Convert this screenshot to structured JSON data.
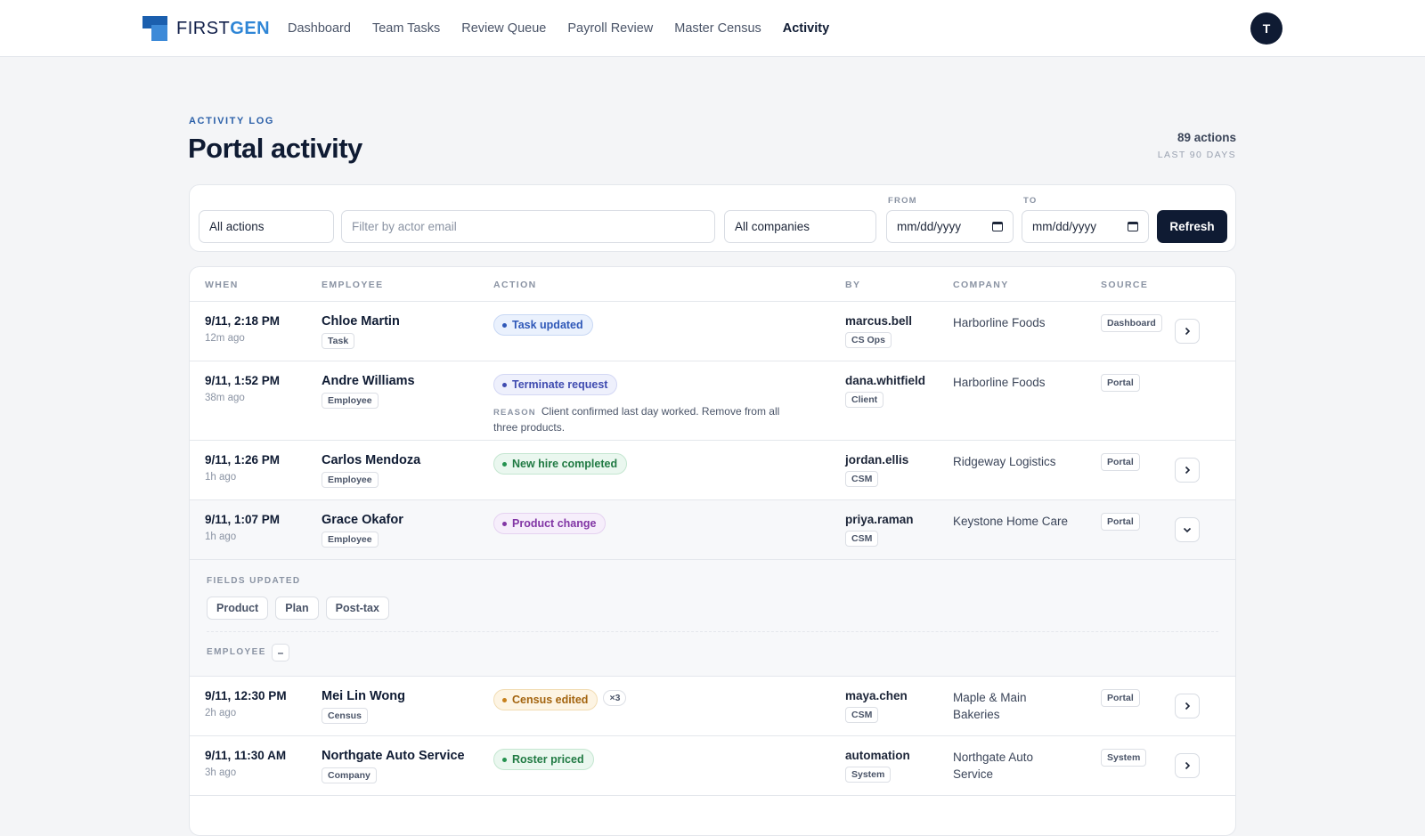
{
  "app": {
    "logo_first": "FIRST",
    "logo_gen": "GEN"
  },
  "nav": {
    "items": [
      "Dashboard",
      "Team Tasks",
      "Review Queue",
      "Payroll Review",
      "Master Census",
      "Activity"
    ],
    "active": "Activity"
  },
  "user": {
    "initial": "T"
  },
  "header": {
    "eyebrow": "ACTIVITY LOG",
    "title": "Portal activity",
    "count": "89 actions",
    "period": "LAST 90 DAYS"
  },
  "filters": {
    "action_select": "All actions",
    "actor_placeholder": "Filter by actor email",
    "company_select": "All companies",
    "from_label": "FROM",
    "from_value": "mm/dd/yyyy",
    "to_label": "TO",
    "to_value": "mm/dd/yyyy",
    "refresh": "Refresh"
  },
  "table": {
    "columns": [
      "WHEN",
      "EMPLOYEE",
      "ACTION",
      "BY",
      "COMPANY",
      "SOURCE"
    ],
    "rows": [
      {
        "when": "9/11, 2:18 PM",
        "ago": "12m ago",
        "employee": "Chloe Martin",
        "type": "Task",
        "action": "Task updated",
        "color": "#2f58b8",
        "by": "marcus.bell",
        "role": "CS Ops",
        "company": "Harborline Foods",
        "source": "Dashboard"
      },
      {
        "when": "9/11, 1:52 PM",
        "ago": "38m ago",
        "employee": "Andre Williams",
        "type": "Employee",
        "action": "Terminate request",
        "color": "#3f4bb0",
        "reason_label": "REASON",
        "reason": "Client confirmed last day worked. Remove from all three products.",
        "by": "dana.whitfield",
        "role": "Client",
        "company": "Harborline Foods",
        "source": "Portal"
      },
      {
        "when": "9/11, 1:26 PM",
        "ago": "1h ago",
        "employee": "Carlos Mendoza",
        "type": "Employee",
        "action": "New hire completed",
        "color": "#207a43",
        "by": "jordan.ellis",
        "role": "CSM",
        "company": "Ridgeway Logistics",
        "source": "Portal"
      },
      {
        "when": "9/11, 1:07 PM",
        "ago": "1h ago",
        "employee": "Grace Okafor",
        "type": "Employee",
        "action": "Product change",
        "color": "#8236a5",
        "by": "priya.raman",
        "role": "CSM",
        "company": "Keystone Home Care",
        "source": "Portal"
      },
      {
        "when": "9/11, 12:30 PM",
        "ago": "2h ago",
        "employee": "Mei Lin Wong",
        "type": "Census",
        "action": "Census edited",
        "multiplier": "×3",
        "color": "#a3640f",
        "by": "maya.chen",
        "role": "CSM",
        "company": "Maple & Main Bakeries",
        "source": "Portal"
      },
      {
        "when": "9/11, 11:30 AM",
        "ago": "3h ago",
        "employee": "Northgate Auto Service",
        "type": "Company",
        "action": "Roster priced",
        "color": "#207a43",
        "by": "automation",
        "role": "System",
        "company": "Northgate Auto Service",
        "source": "System"
      }
    ]
  },
  "expanded": {
    "fields_label": "FIELDS UPDATED",
    "fields": [
      "Product",
      "Plan",
      "Post-tax"
    ],
    "employee_label": "EMPLOYEE",
    "toggle": "–"
  }
}
